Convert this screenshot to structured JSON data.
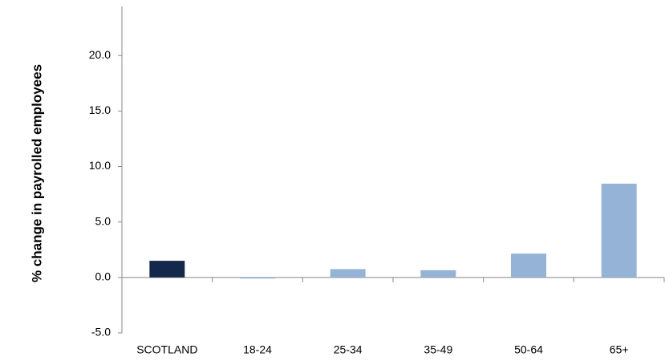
{
  "chart_data": {
    "type": "bar",
    "title": "",
    "xlabel": "",
    "ylabel": "% change in payrolled employees",
    "categories": [
      "SCOTLAND",
      "18-24",
      "25-34",
      "35-49",
      "50-64",
      "65+"
    ],
    "values": [
      1.5,
      -0.1,
      0.75,
      0.65,
      2.15,
      8.45
    ],
    "ylim": [
      -5.0,
      25.0
    ],
    "yticks": [
      "-5.0",
      "0.0",
      "5.0",
      "10.0",
      "15.0",
      "20.0"
    ],
    "colors": [
      "#14284b",
      "#95b3d7",
      "#95b3d7",
      "#95b3d7",
      "#95b3d7",
      "#95b3d7"
    ],
    "grid": false,
    "legend": "none"
  }
}
